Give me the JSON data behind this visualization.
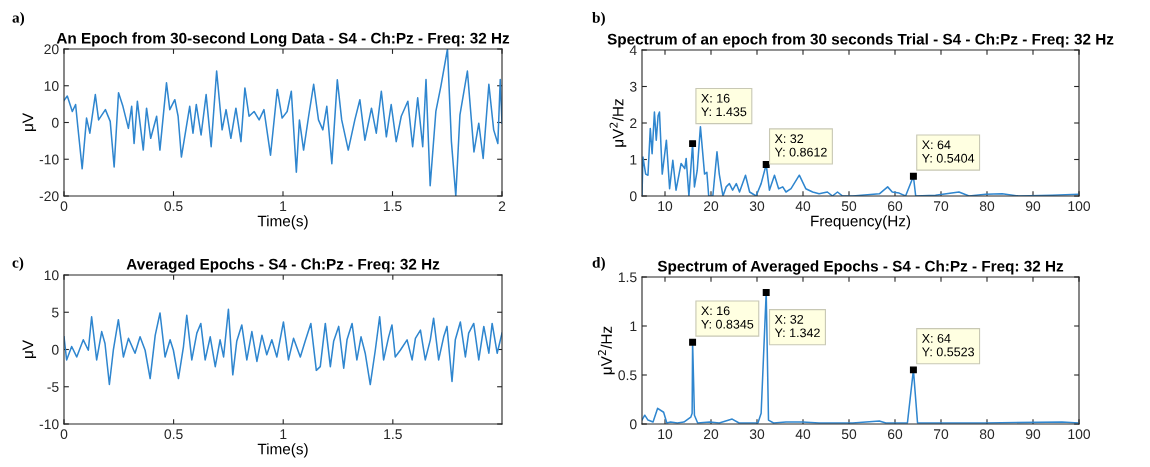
{
  "chart_data": [
    {
      "type": "line",
      "title": "An Epoch from 30-second Long Data - S4 - Ch:Pz - Freq: 32 Hz",
      "xlabel": "Time(s)",
      "ylabel": "μV",
      "annotations": [
        "a)"
      ],
      "grid": false,
      "legend": false,
      "xlim": [
        0,
        2
      ],
      "xticks": [
        0,
        0.5,
        1,
        1.5,
        2
      ],
      "ylim": [
        -20,
        20
      ],
      "yticks": [
        -20,
        -10,
        0,
        10,
        20
      ],
      "series": [
        {
          "color": "#2f86cf",
          "x": [
            0,
            0.015,
            0.038,
            0.053,
            0.063,
            0.083,
            0.103,
            0.118,
            0.143,
            0.158,
            0.189,
            0.211,
            0.229,
            0.249,
            0.269,
            0.294,
            0.309,
            0.32,
            0.335,
            0.362,
            0.377,
            0.396,
            0.423,
            0.438,
            0.468,
            0.483,
            0.506,
            0.521,
            0.536,
            0.574,
            0.589,
            0.604,
            0.626,
            0.649,
            0.672,
            0.697,
            0.722,
            0.74,
            0.762,
            0.785,
            0.808,
            0.826,
            0.845,
            0.868,
            0.891,
            0.913,
            0.943,
            0.974,
            0.996,
            1.019,
            1.038,
            1.061,
            1.075,
            1.094,
            1.117,
            1.14,
            1.162,
            1.182,
            1.2,
            1.223,
            1.248,
            1.268,
            1.298,
            1.328,
            1.351,
            1.374,
            1.404,
            1.426,
            1.449,
            1.472,
            1.494,
            1.517,
            1.54,
            1.57,
            1.592,
            1.615,
            1.638,
            1.653,
            1.672,
            1.698,
            1.721,
            1.751,
            1.769,
            1.789,
            1.808,
            1.842,
            1.872,
            1.894,
            1.914,
            1.94,
            1.962,
            1.981,
            1.992,
            2
          ],
          "values": [
            6,
            7.2,
            3,
            4.9,
            -1.1,
            -12.6,
            1.2,
            -2.9,
            7.6,
            0.7,
            3.5,
            0.3,
            -12.1,
            8.1,
            4.4,
            -1.6,
            4.4,
            -5.7,
            5.8,
            -7.5,
            3.9,
            -4.3,
            1.7,
            -7.5,
            10.8,
            3.5,
            6.2,
            1.7,
            -9.4,
            4.4,
            -2.9,
            4.9,
            -3.4,
            7.6,
            -6.6,
            14,
            -2,
            3.5,
            -4.3,
            3.9,
            -5.2,
            9.4,
            1.7,
            3,
            0.7,
            3.5,
            -8.9,
            9,
            1.2,
            3,
            8.5,
            -13.5,
            0.7,
            -7.5,
            1.7,
            10.4,
            0.7,
            -2,
            4.4,
            -11.2,
            11.6,
            0.7,
            -7.5,
            0.7,
            6.2,
            -4.8,
            3.9,
            -2.9,
            8.5,
            -3.9,
            4.9,
            -5.2,
            1.7,
            5.8,
            -6.6,
            6.7,
            -6.6,
            11.7,
            -17.2,
            3,
            9.9,
            20,
            -5.2,
            -20,
            2.1,
            14,
            -8,
            -0.2,
            -9.8,
            10.4,
            -2,
            -5.7,
            11.7,
            -0.2
          ]
        }
      ]
    },
    {
      "type": "line",
      "title": "Spectrum of an epoch from 30 seconds Trial - S4 - Ch:Pz - Freq: 32 Hz",
      "xlabel": "Frequency(Hz)",
      "ylabel": "μV$^{2}$/Hz",
      "grid": false,
      "legend": false,
      "xlim": [
        5,
        100
      ],
      "xticks": [
        10,
        20,
        30,
        40,
        50,
        60,
        70,
        80,
        90,
        100
      ],
      "ylim": [
        0,
        4
      ],
      "yticks": [
        0,
        1,
        2,
        3,
        4
      ],
      "annotations": [
        "b)",
        {
          "text": "X: 16\nY: 1.435",
          "x": 16,
          "y": 1.435
        },
        {
          "text": "X: 32\nY: 0.8612",
          "x": 32,
          "y": 0.8612
        },
        {
          "text": "X: 64\nY: 0.5404",
          "x": 64,
          "y": 0.5404
        }
      ],
      "series": [
        {
          "color": "#2f86cf",
          "x": [
            5,
            5.2,
            5.8,
            6.3,
            6.8,
            7.2,
            7.7,
            8.1,
            8.5,
            8.8,
            9.4,
            10.3,
            11,
            11.7,
            12.4,
            13.5,
            14.3,
            14.6,
            15.2,
            16,
            16.4,
            17,
            17.7,
            18.6,
            19.1,
            19.5,
            20.4,
            21.3,
            21.8,
            22.6,
            23.3,
            24,
            24.7,
            25.5,
            26.2,
            27.5,
            28.4,
            29.8,
            30.9,
            32,
            32.7,
            33.8,
            34.7,
            35.6,
            36.3,
            37.4,
            39.2,
            40.6,
            42.1,
            43.5,
            45.3,
            46.4,
            47.5,
            48.6,
            50.8,
            56.6,
            58.4,
            59.4,
            60.9,
            62.3,
            64,
            64.5,
            68.8,
            73.9,
            76.1,
            79.7,
            83.3,
            86.9,
            94.2,
            99.8
          ],
          "values": [
            0,
            1.07,
            0.6,
            0.57,
            1.85,
            1.16,
            2.3,
            1.53,
            2.2,
            2.3,
            0.6,
            1.53,
            0.2,
            0.98,
            0.16,
            0.89,
            0.75,
            1.03,
            0,
            1.435,
            0.25,
            0.7,
            1.9,
            0.6,
            0.65,
            0,
            0,
            1.21,
            0.6,
            0,
            0.25,
            0.34,
            0.16,
            0.34,
            0.11,
            0.57,
            0.11,
            0,
            0.34,
            0.8612,
            0.16,
            0.57,
            0.2,
            0.25,
            0.11,
            0.2,
            0.57,
            0.2,
            0.11,
            0.06,
            0.11,
            0,
            0.11,
            0,
            0,
            0.06,
            0.25,
            0.11,
            0.08,
            0,
            0.5404,
            0,
            0.02,
            0.11,
            0,
            0.05,
            0.06,
            0,
            0.02,
            0.05
          ]
        }
      ]
    },
    {
      "type": "line",
      "title": "Averaged Epochs - S4 - Ch:Pz - Freq: 32 Hz",
      "xlabel": "Time(s)",
      "ylabel": "μV",
      "annotations": [
        "c)"
      ],
      "grid": false,
      "legend": false,
      "xlim": [
        0,
        1.998
      ],
      "xticks": [
        0,
        0.5,
        1,
        1.5
      ],
      "ylim": [
        -10,
        10
      ],
      "yticks": [
        -10,
        -5,
        0,
        5,
        10
      ],
      "series": [
        {
          "color": "#2f86cf",
          "x": [
            0,
            0.012,
            0.035,
            0.058,
            0.088,
            0.111,
            0.126,
            0.149,
            0.172,
            0.187,
            0.207,
            0.225,
            0.248,
            0.271,
            0.294,
            0.324,
            0.347,
            0.37,
            0.393,
            0.416,
            0.438,
            0.461,
            0.484,
            0.499,
            0.522,
            0.545,
            0.56,
            0.583,
            0.606,
            0.624,
            0.644,
            0.667,
            0.69,
            0.712,
            0.728,
            0.75,
            0.77,
            0.788,
            0.811,
            0.834,
            0.857,
            0.88,
            0.903,
            0.925,
            0.948,
            0.971,
            1.001,
            1.024,
            1.047,
            1.078,
            1.1,
            1.126,
            1.151,
            1.169,
            1.192,
            1.215,
            1.23,
            1.253,
            1.276,
            1.291,
            1.314,
            1.336,
            1.355,
            1.374,
            1.397,
            1.42,
            1.44,
            1.458,
            1.481,
            1.496,
            1.511,
            1.534,
            1.565,
            1.588,
            1.603,
            1.626,
            1.648,
            1.671,
            1.686,
            1.709,
            1.732,
            1.747,
            1.77,
            1.785,
            1.808,
            1.831,
            1.846,
            1.869,
            1.892,
            1.915,
            1.938,
            1.953,
            1.976,
            1.998
          ],
          "values": [
            1.7,
            -1.4,
            0.4,
            -1,
            1.3,
            -0.1,
            4.4,
            -1.4,
            2.4,
            0.8,
            -4.7,
            -0.1,
            4,
            -1,
            1.5,
            -0.5,
            1.7,
            -0.1,
            -3.9,
            1.9,
            4.9,
            -1,
            1.3,
            -0.1,
            -3.9,
            0.4,
            4.6,
            -1.4,
            2.2,
            3.5,
            -1.4,
            1.7,
            -2.3,
            1.3,
            -1,
            5.4,
            -3.4,
            1.1,
            3.3,
            -1.4,
            2.4,
            -1.6,
            1.9,
            -0.7,
            1.3,
            -1,
            3.7,
            -1.4,
            1.5,
            -1,
            1.1,
            3.5,
            -2.8,
            -2.3,
            3.5,
            -2.3,
            1.1,
            3.1,
            -2.5,
            1.3,
            3.5,
            -1.4,
            1.7,
            -0.5,
            -4.7,
            -0.1,
            4.4,
            -1.4,
            1.7,
            3.3,
            -1,
            -0.1,
            1.3,
            -1.4,
            1.5,
            2.6,
            -1.4,
            1.3,
            4.2,
            -1.4,
            1.7,
            3.1,
            -4.3,
            1.3,
            3.7,
            -1,
            2.2,
            3.5,
            -1.4,
            3.1,
            -0.5,
            3.5,
            -0.5,
            2.2
          ]
        }
      ]
    },
    {
      "type": "line",
      "title": "Spectrum of Averaged Epochs - S4 - Ch:Pz - Freq: 32 Hz",
      "ylabel": "μV$^{2}$/Hz",
      "grid": false,
      "legend": false,
      "xlim": [
        5,
        100
      ],
      "xticks": [
        10,
        20,
        30,
        40,
        50,
        60,
        70,
        80,
        90,
        100
      ],
      "ylim": [
        0,
        1.5
      ],
      "yticks": [
        0,
        0.5,
        1,
        1.5
      ],
      "annotations": [
        "d)",
        {
          "text": "X: 16\nY: 0.8345",
          "x": 16,
          "y": 0.8345
        },
        {
          "text": "X: 32\nY: 1.342",
          "x": 32,
          "y": 1.342
        },
        {
          "text": "X: 64\nY: 0.5523",
          "x": 64,
          "y": 0.5523
        }
      ],
      "series": [
        {
          "color": "#2f86cf",
          "x": [
            5,
            5.6,
            6.3,
            7.4,
            8.4,
            9.7,
            10.4,
            11.2,
            12.7,
            14.1,
            15.6,
            15.9,
            16,
            16.4,
            17.1,
            19.7,
            21.8,
            24.6,
            26.1,
            29,
            30.2,
            30.9,
            32,
            32.5,
            33.6,
            36.3,
            39.9,
            43.5,
            50.8,
            56.6,
            58,
            62.7,
            64,
            64.9,
            72.2,
            79.4,
            96.3,
            99.8
          ],
          "values": [
            0.04,
            0.09,
            0.04,
            0.02,
            0.16,
            0.12,
            0.01,
            0.02,
            0.01,
            0.02,
            0.07,
            0.11,
            0.8345,
            0.09,
            0.01,
            0.02,
            0.01,
            0.05,
            0.01,
            0.01,
            0.01,
            0.11,
            1.342,
            0.04,
            0.01,
            0.02,
            0.02,
            0.01,
            0.01,
            0.03,
            0.01,
            0.01,
            0.5523,
            0.01,
            0.01,
            0.01,
            0.02,
            0.01
          ]
        }
      ]
    }
  ]
}
